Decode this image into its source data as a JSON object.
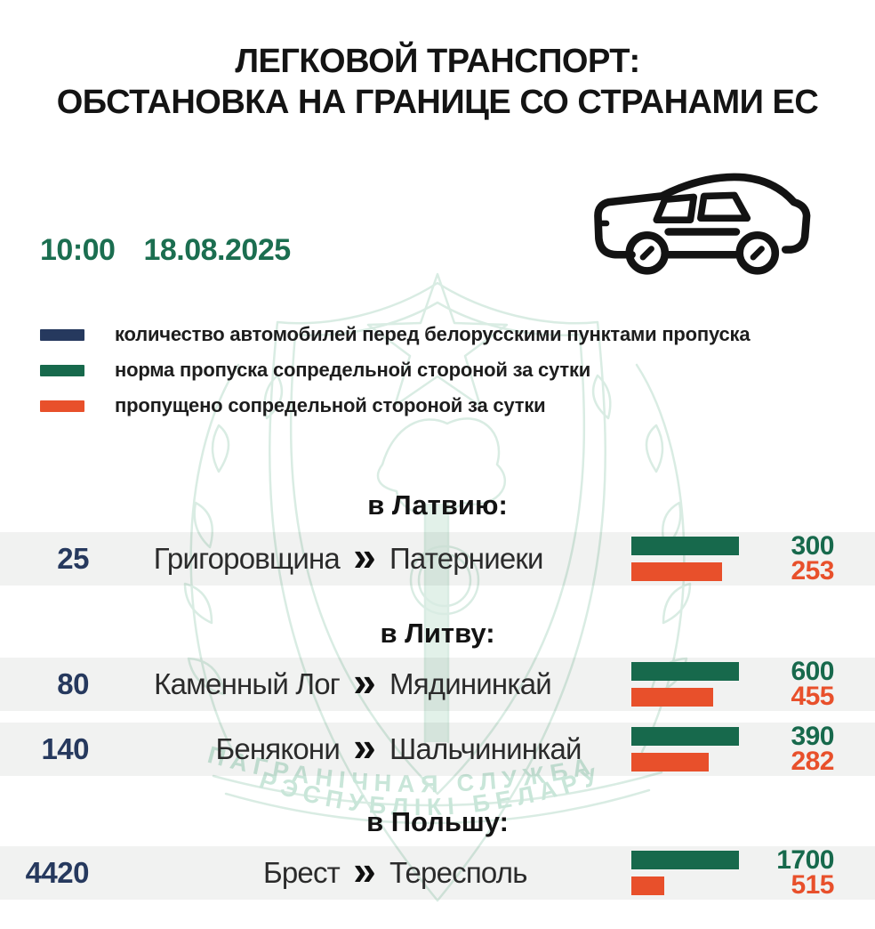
{
  "title": {
    "line1": "ЛЕГКОВОЙ ТРАНСПОРТ:",
    "line2": "ОБСТАНОВКА НА ГРАНИЦЕ СО СТРАНАМИ ЕС"
  },
  "timestamp": {
    "time": "10:00",
    "date": "18.08.2025"
  },
  "legend": [
    {
      "series": "queue",
      "label": "количество автомобилей перед белорусскими пунктами пропуска",
      "color": "#26395e"
    },
    {
      "series": "norm",
      "label": "норма пропуска сопредельной стороной за сутки",
      "color": "#17694c"
    },
    {
      "series": "passed",
      "label": "пропущено сопредельной стороной за сутки",
      "color": "#e8502b"
    }
  ],
  "icons": {
    "car": "sedan-car-outline",
    "chevron": "»"
  },
  "colors": {
    "navy": "#26395e",
    "green": "#17694c",
    "orange": "#e8502b",
    "date_green": "#1b6e50",
    "row_bg": "#f0f0f0",
    "watermark_line": "#d9ece3",
    "watermark_text": "#c9e6d9"
  },
  "watermark": {
    "line1": "ПАГРАНІЧНАЯ СЛУЖБА",
    "line2": "РЭСПУБЛІКІ БЕЛАРУСЬ"
  },
  "chart_data": {
    "type": "bar",
    "title": "ЛЕГКОВОЙ ТРАНСПОРТ: ОБСТАНОВКА НА ГРАНИЦЕ СО СТРАНАМИ ЕС",
    "time": "10:00",
    "date": "18.08.2025",
    "legend": [
      "количество автомобилей перед белорусскими пунктами пропуска",
      "норма пропуска сопредельной стороной за сутки",
      "пропущено сопредельной стороной за сутки"
    ],
    "legend_position": "top-left",
    "groups": [
      {
        "direction": "в Латвию:",
        "rows": [
          {
            "queue": 25,
            "from": "Григоровщина",
            "to": "Патерниеки",
            "norm": 300,
            "passed": 253
          }
        ]
      },
      {
        "direction": "в Литву:",
        "rows": [
          {
            "queue": 80,
            "from": "Каменный Лог",
            "to": "Мядининкай",
            "norm": 600,
            "passed": 455
          },
          {
            "queue": 140,
            "from": "Бенякони",
            "to": "Шальчининкай",
            "norm": 390,
            "passed": 282
          }
        ]
      },
      {
        "direction": "в Польшу:",
        "rows": [
          {
            "queue": 4420,
            "from": "Брест",
            "to": "Тересполь",
            "norm": 1700,
            "passed": 515
          }
        ]
      }
    ]
  }
}
